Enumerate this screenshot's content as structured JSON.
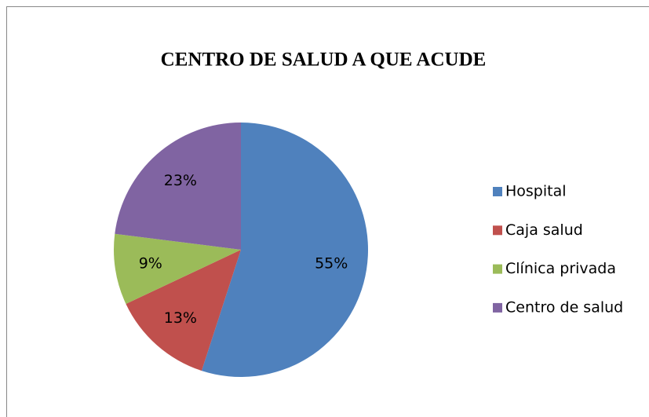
{
  "chart_data": {
    "type": "pie",
    "title": "CENTRO DE SALUD A QUE ACUDE",
    "categories": [
      "Hospital",
      "Caja salud",
      "Clínica privada",
      "Centro de salud"
    ],
    "values": [
      55,
      13,
      9,
      23
    ],
    "value_labels": [
      "55%",
      "13%",
      "9%",
      "23%"
    ],
    "colors": [
      "#4f81bd",
      "#c0504d",
      "#9bbb59",
      "#8064a2"
    ],
    "legend": "right"
  }
}
